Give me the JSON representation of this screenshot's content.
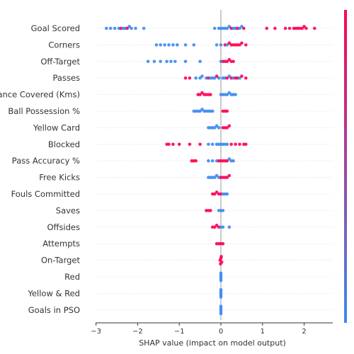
{
  "chart_data": {
    "type": "scatter",
    "xlabel": "SHAP value (impact on model output)",
    "xlim": [
      -3,
      2.7
    ],
    "x_ticks": [
      -3,
      -2,
      -1,
      0,
      1,
      2
    ],
    "x_tick_labels": [
      "−3",
      "−2",
      "−1",
      "0",
      "1",
      "2"
    ],
    "colorbar": {
      "low_color": "#3b8bf0",
      "high_color": "#ff0052"
    },
    "features": [
      {
        "name": "Goal Scored",
        "dots": [
          [
            -2.75,
            0
          ],
          [
            -2.65,
            0
          ],
          [
            -2.55,
            0
          ],
          [
            -2.45,
            0
          ],
          [
            -2.4,
            1
          ],
          [
            -2.35,
            0
          ],
          [
            -2.3,
            0
          ],
          [
            -2.25,
            1
          ],
          [
            -2.2,
            0
          ],
          [
            -2.15,
            0
          ],
          [
            -2.05,
            0
          ],
          [
            -1.85,
            0
          ],
          [
            -0.15,
            0
          ],
          [
            -0.05,
            0
          ],
          [
            0.0,
            0
          ],
          [
            0.05,
            0
          ],
          [
            0.1,
            0
          ],
          [
            0.15,
            0
          ],
          [
            0.2,
            0
          ],
          [
            0.25,
            1
          ],
          [
            0.3,
            0
          ],
          [
            0.35,
            0
          ],
          [
            0.4,
            1
          ],
          [
            0.45,
            0
          ],
          [
            0.5,
            0
          ],
          [
            0.55,
            1
          ],
          [
            1.1,
            1
          ],
          [
            1.3,
            1
          ],
          [
            1.55,
            1
          ],
          [
            1.65,
            1
          ],
          [
            1.75,
            1
          ],
          [
            1.8,
            1
          ],
          [
            1.85,
            1
          ],
          [
            1.9,
            1
          ],
          [
            1.95,
            1
          ],
          [
            2.0,
            1
          ],
          [
            2.05,
            1
          ],
          [
            2.25,
            1
          ]
        ]
      },
      {
        "name": "Corners",
        "dots": [
          [
            -1.55,
            0
          ],
          [
            -1.45,
            0
          ],
          [
            -1.35,
            0
          ],
          [
            -1.25,
            0
          ],
          [
            -1.15,
            0
          ],
          [
            -1.05,
            0
          ],
          [
            -0.85,
            0
          ],
          [
            -0.65,
            0
          ],
          [
            -0.1,
            0
          ],
          [
            0.0,
            0
          ],
          [
            0.1,
            1
          ],
          [
            0.15,
            0
          ],
          [
            0.2,
            1
          ],
          [
            0.25,
            1
          ],
          [
            0.3,
            1
          ],
          [
            0.35,
            1
          ],
          [
            0.4,
            1
          ],
          [
            0.45,
            1
          ],
          [
            0.5,
            1
          ],
          [
            0.6,
            1
          ]
        ]
      },
      {
        "name": "Off-Target",
        "dots": [
          [
            -1.75,
            0
          ],
          [
            -1.6,
            0
          ],
          [
            -1.45,
            0
          ],
          [
            -1.3,
            0
          ],
          [
            -1.2,
            0
          ],
          [
            -1.1,
            0
          ],
          [
            -0.85,
            0
          ],
          [
            -0.5,
            0
          ],
          [
            0.0,
            0
          ],
          [
            0.05,
            1
          ],
          [
            0.1,
            1
          ],
          [
            0.15,
            1
          ],
          [
            0.2,
            1
          ],
          [
            0.25,
            1
          ],
          [
            0.3,
            1
          ]
        ]
      },
      {
        "name": "Passes",
        "dots": [
          [
            -0.85,
            1
          ],
          [
            -0.75,
            1
          ],
          [
            -0.6,
            0
          ],
          [
            -0.5,
            0
          ],
          [
            -0.45,
            0
          ],
          [
            -0.35,
            0
          ],
          [
            -0.3,
            1
          ],
          [
            -0.25,
            0
          ],
          [
            -0.2,
            0
          ],
          [
            -0.15,
            0
          ],
          [
            -0.1,
            1
          ],
          [
            -0.05,
            0
          ],
          [
            0.05,
            0
          ],
          [
            0.1,
            0
          ],
          [
            0.15,
            1
          ],
          [
            0.2,
            0
          ],
          [
            0.25,
            1
          ],
          [
            0.3,
            0
          ],
          [
            0.35,
            1
          ],
          [
            0.4,
            1
          ],
          [
            0.45,
            0
          ],
          [
            0.5,
            1
          ],
          [
            0.6,
            1
          ]
        ]
      },
      {
        "name": "Distance Covered (Kms)",
        "dots": [
          [
            -0.55,
            1
          ],
          [
            -0.5,
            1
          ],
          [
            -0.45,
            1
          ],
          [
            -0.4,
            1
          ],
          [
            -0.35,
            1
          ],
          [
            -0.3,
            1
          ],
          [
            -0.25,
            1
          ],
          [
            0.0,
            0
          ],
          [
            0.05,
            0
          ],
          [
            0.1,
            0
          ],
          [
            0.15,
            0
          ],
          [
            0.2,
            0
          ],
          [
            0.25,
            0
          ],
          [
            0.3,
            0
          ],
          [
            0.35,
            0
          ]
        ]
      },
      {
        "name": "Ball Possession %",
        "dots": [
          [
            -0.65,
            0
          ],
          [
            -0.6,
            0
          ],
          [
            -0.55,
            0
          ],
          [
            -0.5,
            0
          ],
          [
            -0.45,
            0
          ],
          [
            -0.4,
            0
          ],
          [
            -0.35,
            0
          ],
          [
            -0.3,
            0
          ],
          [
            -0.25,
            0
          ],
          [
            -0.2,
            0
          ],
          [
            0.05,
            1
          ],
          [
            0.1,
            1
          ],
          [
            0.15,
            1
          ]
        ]
      },
      {
        "name": "Yellow Card",
        "dots": [
          [
            -0.3,
            0
          ],
          [
            -0.25,
            0
          ],
          [
            -0.2,
            0
          ],
          [
            -0.15,
            0
          ],
          [
            -0.1,
            0
          ],
          [
            -0.05,
            0
          ],
          [
            0.05,
            1
          ],
          [
            0.1,
            1
          ],
          [
            0.15,
            1
          ],
          [
            0.2,
            1
          ]
        ]
      },
      {
        "name": "Blocked",
        "dots": [
          [
            -1.3,
            1
          ],
          [
            -1.25,
            1
          ],
          [
            -1.15,
            1
          ],
          [
            -1.0,
            1
          ],
          [
            -0.75,
            1
          ],
          [
            -0.5,
            1
          ],
          [
            -0.3,
            0
          ],
          [
            -0.2,
            0
          ],
          [
            -0.1,
            0
          ],
          [
            -0.05,
            0
          ],
          [
            0.0,
            0
          ],
          [
            0.05,
            0
          ],
          [
            0.1,
            0
          ],
          [
            0.15,
            0
          ],
          [
            0.25,
            1
          ],
          [
            0.35,
            1
          ],
          [
            0.45,
            1
          ],
          [
            0.55,
            1
          ],
          [
            0.6,
            1
          ]
        ]
      },
      {
        "name": "Pass Accuracy %",
        "dots": [
          [
            -0.7,
            1
          ],
          [
            -0.65,
            1
          ],
          [
            -0.6,
            1
          ],
          [
            -0.3,
            0
          ],
          [
            -0.2,
            0
          ],
          [
            -0.1,
            0
          ],
          [
            -0.05,
            1
          ],
          [
            0.0,
            1
          ],
          [
            0.05,
            1
          ],
          [
            0.1,
            1
          ],
          [
            0.15,
            1
          ],
          [
            0.2,
            0
          ],
          [
            0.25,
            0
          ],
          [
            0.3,
            0
          ]
        ]
      },
      {
        "name": "Free Kicks",
        "dots": [
          [
            -0.3,
            0
          ],
          [
            -0.25,
            0
          ],
          [
            -0.2,
            0
          ],
          [
            -0.15,
            0
          ],
          [
            -0.1,
            0
          ],
          [
            -0.05,
            0
          ],
          [
            0.0,
            1
          ],
          [
            0.05,
            1
          ],
          [
            0.1,
            1
          ],
          [
            0.15,
            1
          ],
          [
            0.2,
            1
          ]
        ]
      },
      {
        "name": "Fouls Committed",
        "dots": [
          [
            -0.2,
            1
          ],
          [
            -0.15,
            1
          ],
          [
            -0.1,
            1
          ],
          [
            -0.05,
            1
          ],
          [
            0.0,
            1
          ],
          [
            0.05,
            0
          ],
          [
            0.1,
            0
          ],
          [
            0.15,
            0
          ]
        ]
      },
      {
        "name": "Saves",
        "dots": [
          [
            -0.35,
            1
          ],
          [
            -0.3,
            1
          ],
          [
            -0.25,
            1
          ],
          [
            -0.05,
            0
          ],
          [
            0.0,
            0
          ],
          [
            0.05,
            0
          ]
        ]
      },
      {
        "name": "Offsides",
        "dots": [
          [
            -0.2,
            1
          ],
          [
            -0.15,
            1
          ],
          [
            -0.1,
            1
          ],
          [
            -0.05,
            1
          ],
          [
            0.0,
            0
          ],
          [
            0.05,
            0
          ],
          [
            0.2,
            0
          ]
        ]
      },
      {
        "name": "Attempts",
        "dots": [
          [
            -0.1,
            1
          ],
          [
            -0.05,
            1
          ],
          [
            0.0,
            1
          ],
          [
            0.05,
            1
          ]
        ]
      },
      {
        "name": "On-Target",
        "dots": [
          [
            -0.02,
            1
          ],
          [
            0.0,
            1
          ],
          [
            0.02,
            1
          ],
          [
            0.01,
            1
          ],
          [
            -0.01,
            1
          ]
        ]
      },
      {
        "name": "Red",
        "dots": [
          [
            0.0,
            0
          ],
          [
            0.0,
            0
          ],
          [
            0.0,
            0
          ],
          [
            0.0,
            0
          ],
          [
            0.0,
            0
          ]
        ]
      },
      {
        "name": "Yellow & Red",
        "dots": [
          [
            0.0,
            0
          ],
          [
            0.0,
            0
          ],
          [
            0.0,
            0
          ],
          [
            0.0,
            0
          ],
          [
            0.0,
            0
          ]
        ]
      },
      {
        "name": "Goals in PSO",
        "dots": [
          [
            0.0,
            0
          ],
          [
            0.0,
            0
          ],
          [
            0.0,
            0
          ],
          [
            0.0,
            0
          ],
          [
            0.0,
            0
          ]
        ]
      }
    ]
  }
}
